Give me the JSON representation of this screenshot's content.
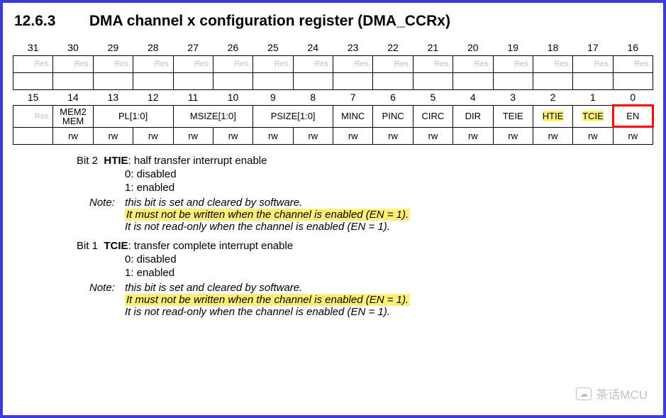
{
  "section": {
    "number": "12.6.3",
    "title": "DMA channel x configuration register (DMA_CCRx)"
  },
  "bits_high": [
    "31",
    "30",
    "29",
    "28",
    "27",
    "26",
    "25",
    "24",
    "23",
    "22",
    "21",
    "20",
    "19",
    "18",
    "17",
    "16"
  ],
  "bits_low": [
    "15",
    "14",
    "13",
    "12",
    "11",
    "10",
    "9",
    "8",
    "7",
    "6",
    "5",
    "4",
    "3",
    "2",
    "1",
    "0"
  ],
  "res": "Res.",
  "fields": {
    "mem2mem": "MEM2\nMEM",
    "pl": "PL[1:0]",
    "msize": "MSIZE[1:0]",
    "psize": "PSIZE[1:0]",
    "minc": "MINC",
    "pinc": "PINC",
    "circ": "CIRC",
    "dir": "DIR",
    "teie": "TEIE",
    "htie": "HTIE",
    "tcie": "TCIE",
    "en": "EN"
  },
  "rw": "rw",
  "desc": {
    "bit2": {
      "head_bit": "Bit 2",
      "head_name": "HTIE",
      "head_rest": ": half transfer interrupt enable",
      "v0": "0: disabled",
      "v1": "1: enabled",
      "note_lbl": "Note:",
      "note1": "this bit is set and cleared by software.",
      "note2": "It must not be written when the channel is enabled (EN = 1).",
      "note3": "It is not read-only when the channel is enabled (EN = 1)."
    },
    "bit1": {
      "head_bit": "Bit 1",
      "head_name": "TCIE",
      "head_rest": ": transfer complete interrupt enable",
      "v0": "0: disabled",
      "v1": "1: enabled",
      "note_lbl": "Note:",
      "note1": "this bit is set and cleared by software.",
      "note2": "It must not be written when the channel is enabled (EN = 1).",
      "note3": "It is not read-only when the channel is enabled (EN = 1)."
    }
  },
  "watermark": "茶话MCU",
  "colors": {
    "frame": "#3a3ade",
    "highlight": "#fff07a",
    "red": "#ff0000",
    "reserved": "#bfbfbf"
  }
}
